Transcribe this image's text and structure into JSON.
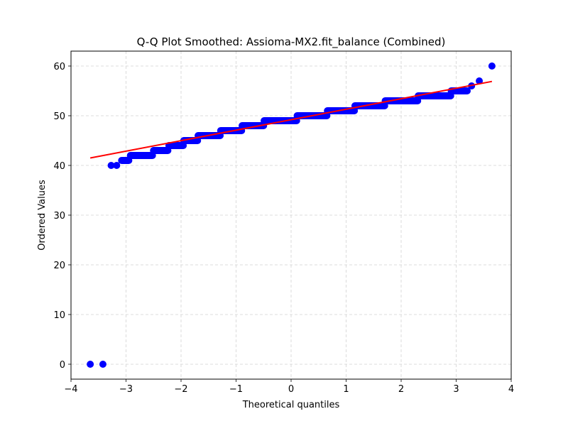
{
  "figure": {
    "title": "Q-Q Plot Smoothed: Assioma-MX2.fit_balance (Combined)",
    "xlabel": "Theoretical quantiles",
    "ylabel": "Ordered Values",
    "colors": {
      "points": "#0000ff",
      "fit_line": "#ff0000",
      "grid": "#d3d3d3",
      "axes": "#000000"
    }
  },
  "chart_data": {
    "type": "scatter",
    "title": "Q-Q Plot Smoothed: Assioma-MX2.fit_balance (Combined)",
    "xlabel": "Theoretical quantiles",
    "ylabel": "Ordered Values",
    "xlim": [
      -4,
      4
    ],
    "ylim": [
      -3,
      63
    ],
    "xticks": [
      -4,
      -3,
      -2,
      -1,
      0,
      1,
      2,
      3,
      4
    ],
    "xtick_labels": [
      "−4",
      "−3",
      "−2",
      "−1",
      "0",
      "1",
      "2",
      "3",
      "4"
    ],
    "yticks": [
      0,
      10,
      20,
      30,
      40,
      50,
      60
    ],
    "ytick_labels": [
      "0",
      "10",
      "20",
      "30",
      "40",
      "50",
      "60"
    ],
    "grid": true,
    "legend": null,
    "series": [
      {
        "name": "Ordered values (sample)",
        "kind": "scatter",
        "color": "#0000ff",
        "isolated_points": [
          {
            "x": -3.65,
            "y": 0
          },
          {
            "x": -3.42,
            "y": 0
          },
          {
            "x": -3.27,
            "y": 40
          },
          {
            "x": -3.17,
            "y": 40
          },
          {
            "x": 3.28,
            "y": 56
          },
          {
            "x": 3.42,
            "y": 57
          },
          {
            "x": 3.65,
            "y": 60
          }
        ],
        "steps": [
          {
            "y": 41,
            "x_start": -3.08,
            "x_end": -2.95
          },
          {
            "y": 42,
            "x_start": -2.92,
            "x_end": -2.52
          },
          {
            "y": 43,
            "x_start": -2.5,
            "x_end": -2.24
          },
          {
            "y": 44,
            "x_start": -2.22,
            "x_end": -1.96
          },
          {
            "y": 45,
            "x_start": -1.95,
            "x_end": -1.7
          },
          {
            "y": 46,
            "x_start": -1.69,
            "x_end": -1.29
          },
          {
            "y": 47,
            "x_start": -1.28,
            "x_end": -0.9
          },
          {
            "y": 48,
            "x_start": -0.89,
            "x_end": -0.5
          },
          {
            "y": 49,
            "x_start": -0.49,
            "x_end": 0.1
          },
          {
            "y": 50,
            "x_start": 0.11,
            "x_end": 0.65
          },
          {
            "y": 51,
            "x_start": 0.66,
            "x_end": 1.15
          },
          {
            "y": 52,
            "x_start": 1.16,
            "x_end": 1.7
          },
          {
            "y": 53,
            "x_start": 1.71,
            "x_end": 2.3
          },
          {
            "y": 54,
            "x_start": 2.31,
            "x_end": 2.9
          },
          {
            "y": 55,
            "x_start": 2.91,
            "x_end": 3.2
          }
        ]
      },
      {
        "name": "Fit line",
        "kind": "line",
        "color": "#ff0000",
        "x": [
          -3.65,
          3.65
        ],
        "y": [
          41.5,
          56.9
        ]
      }
    ]
  }
}
